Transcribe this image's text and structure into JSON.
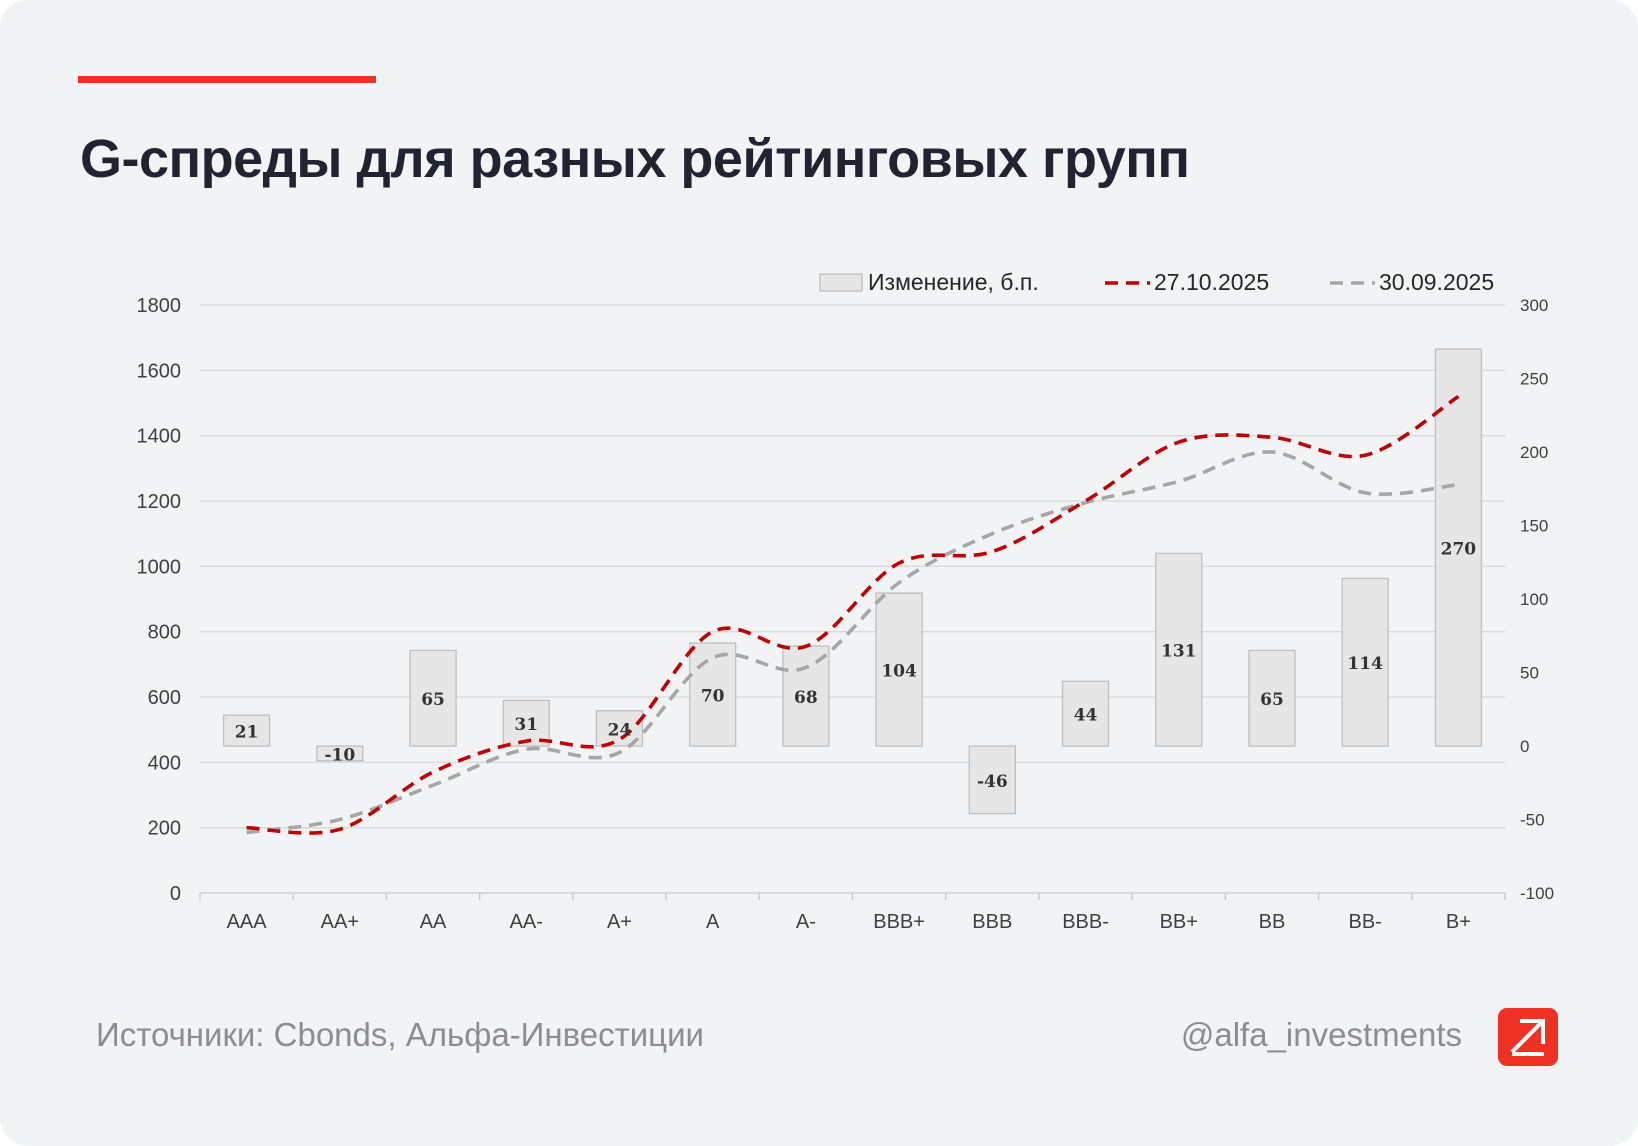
{
  "header": {
    "title": "G-спреды для разных рейтинговых групп"
  },
  "footer": {
    "sources": "Источники: Cbonds, Альфа-Инвестиции",
    "handle": "@alfa_investments"
  },
  "brand": {
    "accent": "#ef3124",
    "logo_icon": "alfa-arrow-icon"
  },
  "chart_data": {
    "type": "bar",
    "categories": [
      "AAA",
      "AA+",
      "AA",
      "AA-",
      "A+",
      "A",
      "A-",
      "BBB+",
      "BBB",
      "BBB-",
      "BB+",
      "BB",
      "BB-",
      "B+"
    ],
    "legend": {
      "placement": "top-right",
      "entries": [
        "Изменение, б.п.",
        "27.10.2025",
        "30.09.2025"
      ]
    },
    "y_left": {
      "range": [
        0,
        1800
      ],
      "ticks": [
        "0",
        "200",
        "400",
        "600",
        "800",
        "1000",
        "1200",
        "1400",
        "1600",
        "1800"
      ]
    },
    "y_right": {
      "range": [
        -100,
        300
      ],
      "ticks": [
        "-100",
        "-50",
        "0",
        "50",
        "100",
        "150",
        "200",
        "250",
        "300"
      ]
    },
    "grid": true,
    "series": [
      {
        "name": "Изменение, б.п.",
        "type": "bar",
        "axis": "right",
        "color": "#e6e6e6",
        "values": [
          21,
          -10,
          65,
          31,
          24,
          70,
          68,
          104,
          -46,
          44,
          131,
          65,
          114,
          270
        ],
        "labels": [
          "21",
          "-10",
          "65",
          "31",
          "24",
          "70",
          "68",
          "104",
          "-46",
          "44",
          "131",
          "65",
          "114",
          "270"
        ]
      },
      {
        "name": "27.10.2025",
        "type": "line",
        "axis": "left",
        "color": "#c00000",
        "dash": true,
        "values": [
          200,
          195,
          370,
          465,
          470,
          800,
          755,
          1010,
          1045,
          1200,
          1380,
          1395,
          1340,
          1520
        ]
      },
      {
        "name": "30.09.2025",
        "type": "line",
        "axis": "left",
        "color": "#a6a6a6",
        "dash": true,
        "values": [
          185,
          225,
          330,
          440,
          430,
          720,
          690,
          950,
          1100,
          1195,
          1260,
          1350,
          1225,
          1250
        ]
      }
    ]
  }
}
